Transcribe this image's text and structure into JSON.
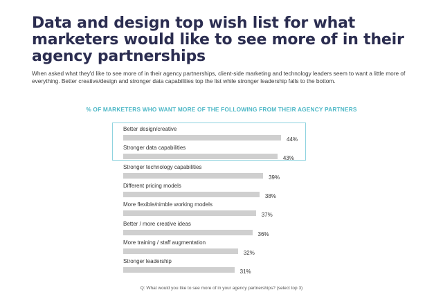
{
  "title": "Data and design top wish list for what marketers would like to see more of in their agency partnerships",
  "subtitle": "When asked what they'd like to see more of in their agency partnerships, client-side marketing and technology leaders seem to want a little more of everything. Better creative/design and stronger data capabilities top the list while stronger leadership falls to the bottom.",
  "footnote": "Q: What would you like to see more of in your agency partnerships? (select top 3)",
  "colors": {
    "title": "#2b2d50",
    "accent": "#4cb7c6",
    "bar": "#cfcfcf",
    "highlight_border": "#8fd3df"
  },
  "chart_data": {
    "type": "bar",
    "orientation": "horizontal",
    "title": "% OF MARKETERS WHO WANT MORE OF THE FOLLOWING FROM THEIR AGENCY PARTNERS",
    "categories": [
      "Better design/creative",
      "Stronger data capabilities",
      "Stronger technology capabilities",
      "Different pricing models",
      "More flexible/nimble working models",
      "Better / more creative ideas",
      "More training / staff augmentation",
      "Stronger leadership"
    ],
    "values": [
      44,
      43,
      39,
      38,
      37,
      36,
      32,
      31
    ],
    "value_labels": [
      "44%",
      "43%",
      "39%",
      "38%",
      "37%",
      "36%",
      "32%",
      "31%"
    ],
    "highlighted_categories": [
      "Better design/creative",
      "Stronger data capabilities"
    ],
    "xlim": [
      0,
      44
    ],
    "grid": false
  }
}
